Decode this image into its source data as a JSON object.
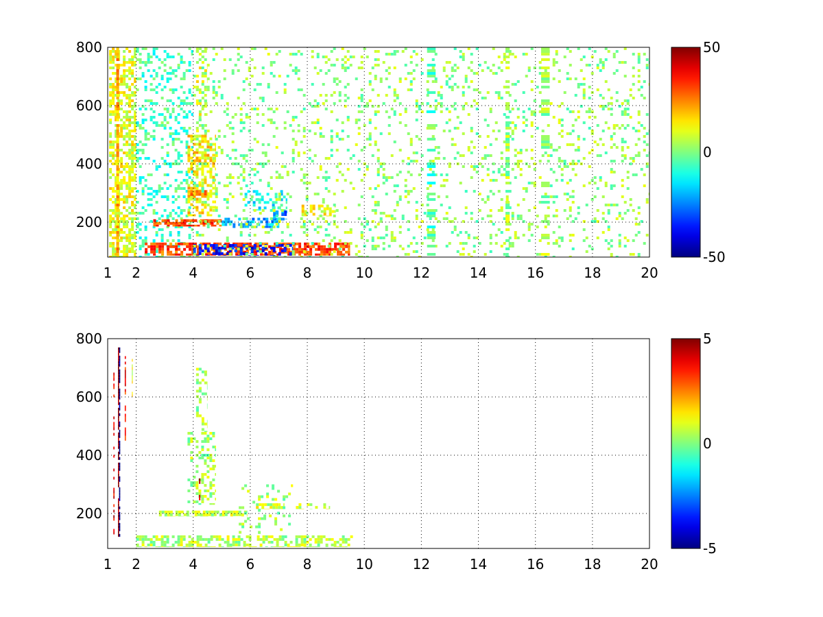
{
  "chart_data": [
    {
      "type": "heatmap",
      "title": "",
      "xlabel": "",
      "ylabel": "",
      "xlim": [
        1,
        20
      ],
      "ylim": [
        80,
        800
      ],
      "grid": true,
      "x_ticks": [
        1,
        2,
        4,
        6,
        8,
        10,
        12,
        14,
        16,
        18,
        20
      ],
      "x_tick_labels": [
        "1",
        "2",
        "4",
        "6",
        "8",
        "10",
        "12",
        "14",
        "16",
        "18",
        "20"
      ],
      "y_ticks": [
        200,
        400,
        600,
        800
      ],
      "y_tick_labels": [
        "200",
        "400",
        "600",
        "800"
      ],
      "colorbar": {
        "colormap": "jet",
        "range": [
          -50,
          50
        ],
        "ticks": [
          -50,
          0,
          50
        ],
        "tick_labels": [
          "-50",
          "0",
          "50"
        ]
      },
      "features": [
        {
          "x": [
            1.05,
            2.0
          ],
          "y": [
            80,
            800
          ],
          "value": 10,
          "density": 0.55,
          "kind": "dense noisy band near low x"
        },
        {
          "x": [
            1.3,
            1.4
          ],
          "y": [
            80,
            800
          ],
          "value": 20,
          "density": 0.9,
          "kind": "vertical stripe"
        },
        {
          "x": [
            2.0,
            4.0
          ],
          "y": [
            80,
            800
          ],
          "value": -6,
          "density": 0.25,
          "kind": "sparse noise"
        },
        {
          "x": [
            2.3,
            9.5
          ],
          "y": [
            85,
            130
          ],
          "value": 30,
          "density": 0.7,
          "kind": "strong low band"
        },
        {
          "x": [
            4.0,
            7.5
          ],
          "y": [
            85,
            125
          ],
          "value": -35,
          "density": 0.45,
          "kind": "negative low band"
        },
        {
          "x": [
            2.6,
            5.0
          ],
          "y": [
            185,
            210
          ],
          "value": 30,
          "density": 0.75,
          "kind": "band at 200"
        },
        {
          "x": [
            5.0,
            7.2
          ],
          "y": [
            180,
            215
          ],
          "value": -20,
          "density": 0.55,
          "kind": "negative band at 200"
        },
        {
          "x": [
            6.8,
            7.3
          ],
          "y": [
            210,
            240
          ],
          "value": -25,
          "density": 0.6,
          "kind": "band near 225"
        },
        {
          "x": [
            3.8,
            4.8
          ],
          "y": [
            220,
            500
          ],
          "value": 15,
          "density": 0.5,
          "kind": "rising branch"
        },
        {
          "x": [
            4.1,
            4.5
          ],
          "y": [
            500,
            800
          ],
          "value": 10,
          "density": 0.3,
          "kind": "upper branch"
        },
        {
          "x": [
            3.8,
            4.5
          ],
          "y": [
            290,
            310
          ],
          "value": 25,
          "density": 0.7,
          "kind": "band near 300"
        },
        {
          "x": [
            5.8,
            7.3
          ],
          "y": [
            240,
            310
          ],
          "value": -12,
          "density": 0.35,
          "kind": "mid scatter"
        },
        {
          "x": [
            7.8,
            9.0
          ],
          "y": [
            220,
            260
          ],
          "value": 12,
          "density": 0.45,
          "kind": "band near 240"
        },
        {
          "x": [
            4.0,
            20.0
          ],
          "y": [
            80,
            800
          ],
          "value": 2,
          "density": 0.13,
          "kind": "sparse speckle"
        },
        {
          "x": [
            14.95,
            15.1
          ],
          "y": [
            80,
            800
          ],
          "value": 3,
          "density": 0.6,
          "kind": "vertical stripe"
        },
        {
          "x": [
            12.2,
            12.5
          ],
          "y": [
            80,
            800
          ],
          "value": -4,
          "density": 0.35,
          "kind": "vertical stripe"
        },
        {
          "x": [
            16.2,
            16.5
          ],
          "y": [
            80,
            800
          ],
          "value": 3,
          "density": 0.3,
          "kind": "vertical stripe"
        }
      ]
    },
    {
      "type": "heatmap",
      "title": "",
      "xlabel": "",
      "ylabel": "",
      "xlim": [
        1,
        20
      ],
      "ylim": [
        80,
        800
      ],
      "grid": true,
      "x_ticks": [
        1,
        2,
        4,
        6,
        8,
        10,
        12,
        14,
        16,
        18,
        20
      ],
      "x_tick_labels": [
        "1",
        "2",
        "4",
        "6",
        "8",
        "10",
        "12",
        "14",
        "16",
        "18",
        "20"
      ],
      "y_ticks": [
        200,
        400,
        600,
        800
      ],
      "y_tick_labels": [
        "200",
        "400",
        "600",
        "800"
      ],
      "colorbar": {
        "colormap": "jet",
        "range": [
          -5,
          5
        ],
        "ticks": [
          -5,
          0,
          5
        ],
        "tick_labels": [
          "-5",
          "0",
          "5"
        ]
      },
      "features": [
        {
          "x": [
            1.36,
            1.4
          ],
          "y": [
            120,
            770
          ],
          "value": 5,
          "density": 0.85,
          "kind": "vertical stripe"
        },
        {
          "x": [
            1.4,
            1.44
          ],
          "y": [
            120,
            770
          ],
          "value": -5,
          "density": 0.6,
          "kind": "vertical stripe"
        },
        {
          "x": [
            1.2,
            1.24
          ],
          "y": [
            120,
            740
          ],
          "value": 4,
          "density": 0.4,
          "kind": "vertical stripe"
        },
        {
          "x": [
            1.6,
            1.64
          ],
          "y": [
            450,
            740
          ],
          "value": 3.5,
          "density": 0.5,
          "kind": "vertical stripe"
        },
        {
          "x": [
            1.85,
            1.88
          ],
          "y": [
            600,
            740
          ],
          "value": 1,
          "density": 0.5,
          "kind": "vertical stripe"
        },
        {
          "x": [
            2.0,
            9.6
          ],
          "y": [
            85,
            125
          ],
          "value": 0.5,
          "density": 0.6,
          "kind": "low band"
        },
        {
          "x": [
            2.8,
            5.9
          ],
          "y": [
            190,
            210
          ],
          "value": 0.6,
          "density": 0.7,
          "kind": "band at 200"
        },
        {
          "x": [
            6.2,
            7.2
          ],
          "y": [
            215,
            235
          ],
          "value": 0.8,
          "density": 0.8,
          "kind": "band near 225"
        },
        {
          "x": [
            7.6,
            8.8
          ],
          "y": [
            215,
            235
          ],
          "value": 1,
          "density": 0.35,
          "kind": "band near 225"
        },
        {
          "x": [
            3.8,
            4.8
          ],
          "y": [
            230,
            480
          ],
          "value": 0.4,
          "density": 0.3,
          "kind": "rising branch"
        },
        {
          "x": [
            4.1,
            4.5
          ],
          "y": [
            480,
            700
          ],
          "value": 0.3,
          "density": 0.25,
          "kind": "upper branch"
        },
        {
          "x": [
            4.2,
            4.25
          ],
          "y": [
            220,
            330
          ],
          "value": 4,
          "density": 0.5,
          "kind": "vertical stripe"
        },
        {
          "x": [
            5.5,
            7.5
          ],
          "y": [
            130,
            300
          ],
          "value": 0.4,
          "density": 0.12,
          "kind": "mid scatter"
        }
      ]
    }
  ]
}
